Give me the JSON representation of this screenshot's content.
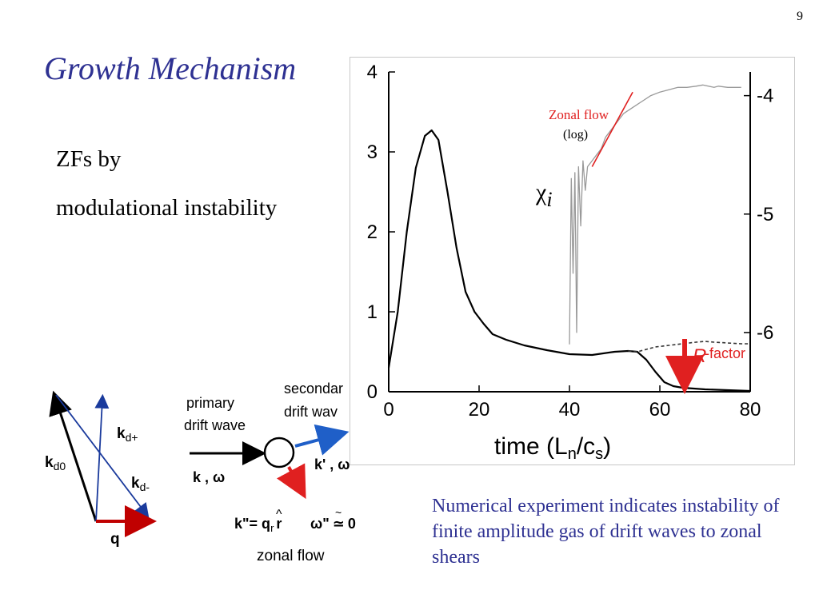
{
  "slide": {
    "number": "9",
    "title": "Growth Mechanism",
    "bullets": [
      "ZFs by",
      "modulational instability"
    ],
    "caption": "Numerical experiment indicates instability of finite amplitude gas of drift waves to zonal shears"
  },
  "vector_diagram": {
    "labels": {
      "kd0": "k",
      "kd0_sub": "d0",
      "kdp": "k",
      "kdp_sub": "d+",
      "kdm": "k",
      "kdm_sub": "d-",
      "q": "q"
    },
    "colors": {
      "kd0": "#000000",
      "kdp": "#1a3a9c",
      "kdm": "#1a3a9c",
      "q": "#c00000"
    }
  },
  "interaction_diagram": {
    "primary_line1": "primary",
    "primary_line2": "drift wave",
    "secondary_line1": "secondar",
    "secondary_line2": "drift wav",
    "k_omega": "k , ω",
    "kprime": "k' ,  ω",
    "kpp_lhs": "k\"= q",
    "kpp_sub": "r",
    "kpp_rhat": "r",
    "hat": "^",
    "omega_pp": "ω\"",
    "approx": "≃",
    "tilde": "~",
    "zero": "0",
    "zonal_flow": "zonal flow",
    "colors": {
      "secondary": "#1f5fc8",
      "zonal": "#e02020"
    }
  },
  "chart_data": {
    "type": "line",
    "xlabel": "time (L",
    "xlabel_sub1": "n",
    "xlabel_mid": "/c",
    "xlabel_sub2": "s",
    "xlabel_close": ")",
    "xlim": [
      0,
      80
    ],
    "ylim": [
      0,
      4
    ],
    "y2lim": [
      -6.5,
      -3.8
    ],
    "xticks": [
      "0",
      "20",
      "40",
      "60",
      "80"
    ],
    "yticks": [
      "0",
      "1",
      "2",
      "3",
      "4"
    ],
    "y2ticks": [
      "-4",
      "-5",
      "-6"
    ],
    "annotations": {
      "zonal_flow": "Zonal flow",
      "log": "(log)",
      "chi": "χ",
      "chi_sub": "i",
      "r_factor_script": "R",
      "r_factor_text": "-factor"
    },
    "series": [
      {
        "label": "chi_i",
        "axis": "left",
        "color": "#000000",
        "x": [
          0,
          2,
          4,
          6,
          8,
          9.5,
          11,
          13,
          15,
          17,
          19,
          21,
          23,
          26,
          30,
          35,
          40,
          45,
          50,
          53,
          55,
          57,
          59,
          61,
          63,
          65,
          70,
          75,
          80
        ],
        "y": [
          0.3,
          1.0,
          2.0,
          2.8,
          3.2,
          3.27,
          3.15,
          2.5,
          1.8,
          1.25,
          1.0,
          0.85,
          0.72,
          0.65,
          0.58,
          0.52,
          0.47,
          0.46,
          0.5,
          0.51,
          0.5,
          0.4,
          0.25,
          0.12,
          0.07,
          0.05,
          0.03,
          0.02,
          0.01
        ]
      },
      {
        "label": "reference_dashed",
        "axis": "left",
        "color": "#333333",
        "x": [
          53,
          55,
          57,
          59,
          62,
          65,
          68,
          70,
          72,
          75,
          78,
          80
        ],
        "y": [
          0.51,
          0.5,
          0.53,
          0.56,
          0.58,
          0.6,
          0.62,
          0.63,
          0.62,
          0.61,
          0.6,
          0.6
        ]
      },
      {
        "label": "zonal_flow_log",
        "axis": "right",
        "color": "#999999",
        "x": [
          40,
          40.4,
          40.8,
          41.2,
          41.6,
          42,
          42.5,
          43,
          43.5,
          44,
          45,
          46,
          47,
          48,
          50,
          52,
          54,
          56,
          58,
          60,
          62,
          64,
          66,
          68,
          69.5,
          72,
          73,
          75,
          78
        ],
        "y": [
          -6.1,
          -4.7,
          -5.5,
          -4.65,
          -6.0,
          -4.6,
          -5.1,
          -4.55,
          -4.8,
          -4.6,
          -4.55,
          -4.5,
          -4.45,
          -4.35,
          -4.25,
          -4.15,
          -4.1,
          -4.05,
          -4.0,
          -3.97,
          -3.95,
          -3.93,
          -3.93,
          -3.92,
          -3.91,
          -3.93,
          -3.92,
          -3.93,
          -3.93
        ]
      },
      {
        "label": "fit",
        "axis": "right",
        "color": "#e02020",
        "x": [
          45,
          54
        ],
        "y": [
          -4.6,
          -3.97
        ]
      }
    ]
  }
}
